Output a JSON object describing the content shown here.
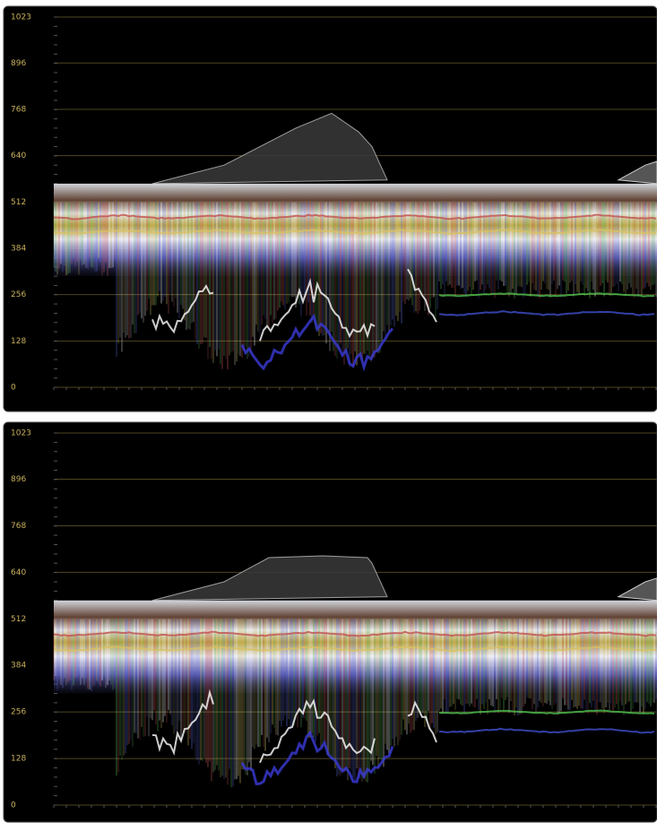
{
  "chart_data": [
    {
      "type": "waveform",
      "ylim": [
        0,
        1023
      ],
      "yticks": [
        0,
        128,
        256,
        384,
        512,
        640,
        768,
        896,
        1023
      ],
      "grid": true,
      "tick_color": "#c8b05c",
      "grid_color": "#4d4620"
    },
    {
      "type": "waveform",
      "ylim": [
        0,
        1023
      ],
      "yticks": [
        0,
        128,
        256,
        384,
        512,
        640,
        768,
        896,
        1023
      ],
      "grid": true,
      "tick_color": "#c8b05c",
      "grid_color": "#4d4620"
    }
  ]
}
